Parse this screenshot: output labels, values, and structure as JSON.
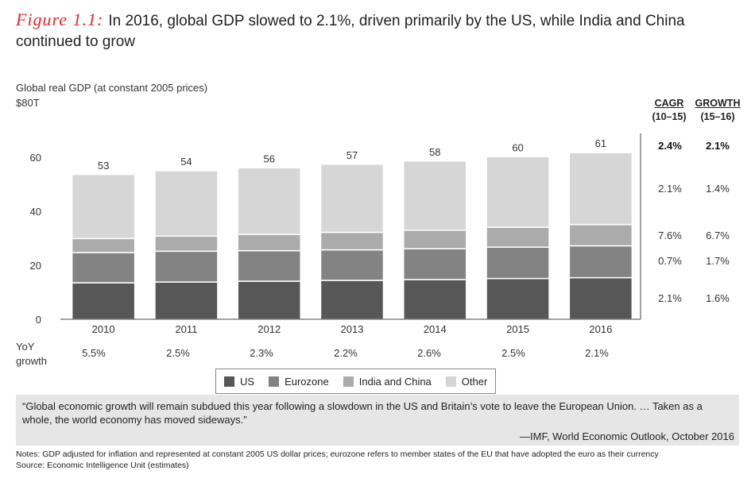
{
  "header": {
    "figure_label": "Figure 1.1:",
    "title": "In 2016, global GDP slowed to 2.1%, driven primarily by the US, while India and China continued to grow"
  },
  "axis": {
    "ytitle": "Global real GDP (at constant 2005 prices)",
    "ymax_label": "$80T"
  },
  "chart_data": {
    "type": "bar",
    "stacked": true,
    "categories": [
      "2010",
      "2011",
      "2012",
      "2013",
      "2014",
      "2015",
      "2016"
    ],
    "series": [
      {
        "name": "US",
        "color": "#575757",
        "values": [
          13.5,
          13.8,
          14.1,
          14.4,
          14.7,
          15.1,
          15.4
        ]
      },
      {
        "name": "Eurozone",
        "color": "#838383",
        "values": [
          11.2,
          11.4,
          11.3,
          11.3,
          11.4,
          11.6,
          11.8
        ]
      },
      {
        "name": "India and China",
        "color": "#ababab",
        "values": [
          5.2,
          5.6,
          6.0,
          6.5,
          6.9,
          7.4,
          7.9
        ]
      },
      {
        "name": "Other",
        "color": "#d6d6d6",
        "values": [
          23.7,
          24.2,
          24.7,
          25.2,
          25.6,
          26.1,
          26.6
        ]
      }
    ],
    "totals": [
      "53",
      "54",
      "56",
      "57",
      "58",
      "60",
      "61"
    ],
    "y_ticks": [
      "0",
      "20",
      "40",
      "60"
    ],
    "ylim": [
      0,
      80
    ]
  },
  "side_table": {
    "cagr_header": [
      "CAGR",
      "(10–15)"
    ],
    "growth_header": [
      "GROWTH",
      "(15–16)"
    ],
    "rows": [
      {
        "cagr": "2.4%",
        "growth": "2.1%",
        "bold": true
      },
      {
        "cagr": "2.1%",
        "growth": "1.4%"
      },
      {
        "cagr": "7.6%",
        "growth": "6.7%"
      },
      {
        "cagr": "0.7%",
        "growth": "1.7%"
      },
      {
        "cagr": "2.1%",
        "growth": "1.6%"
      }
    ]
  },
  "yoy": {
    "label_line1": "YoY",
    "label_line2": "growth",
    "values": [
      "5.5%",
      "2.5%",
      "2.3%",
      "2.2%",
      "2.6%",
      "2.5%",
      "2.1%"
    ]
  },
  "legend": [
    {
      "label": "US",
      "color": "#575757"
    },
    {
      "label": "Eurozone",
      "color": "#838383"
    },
    {
      "label": "India and China",
      "color": "#ababab"
    },
    {
      "label": "Other",
      "color": "#d6d6d6"
    }
  ],
  "quote": {
    "text": "“Global economic growth will remain subdued this year following a slowdown in the US and Britain’s vote to leave the European Union. … Taken as a whole, the world economy has moved sideways.”",
    "source": "—IMF, World Economic Outlook, October 2016"
  },
  "notes": {
    "line1": "Notes: GDP adjusted for inflation and represented at constant 2005 US dollar prices; eurozone refers to member states of the EU that have adopted the euro as their currency",
    "line2": "Source: Economic Intelligence Unit (estimates)"
  }
}
